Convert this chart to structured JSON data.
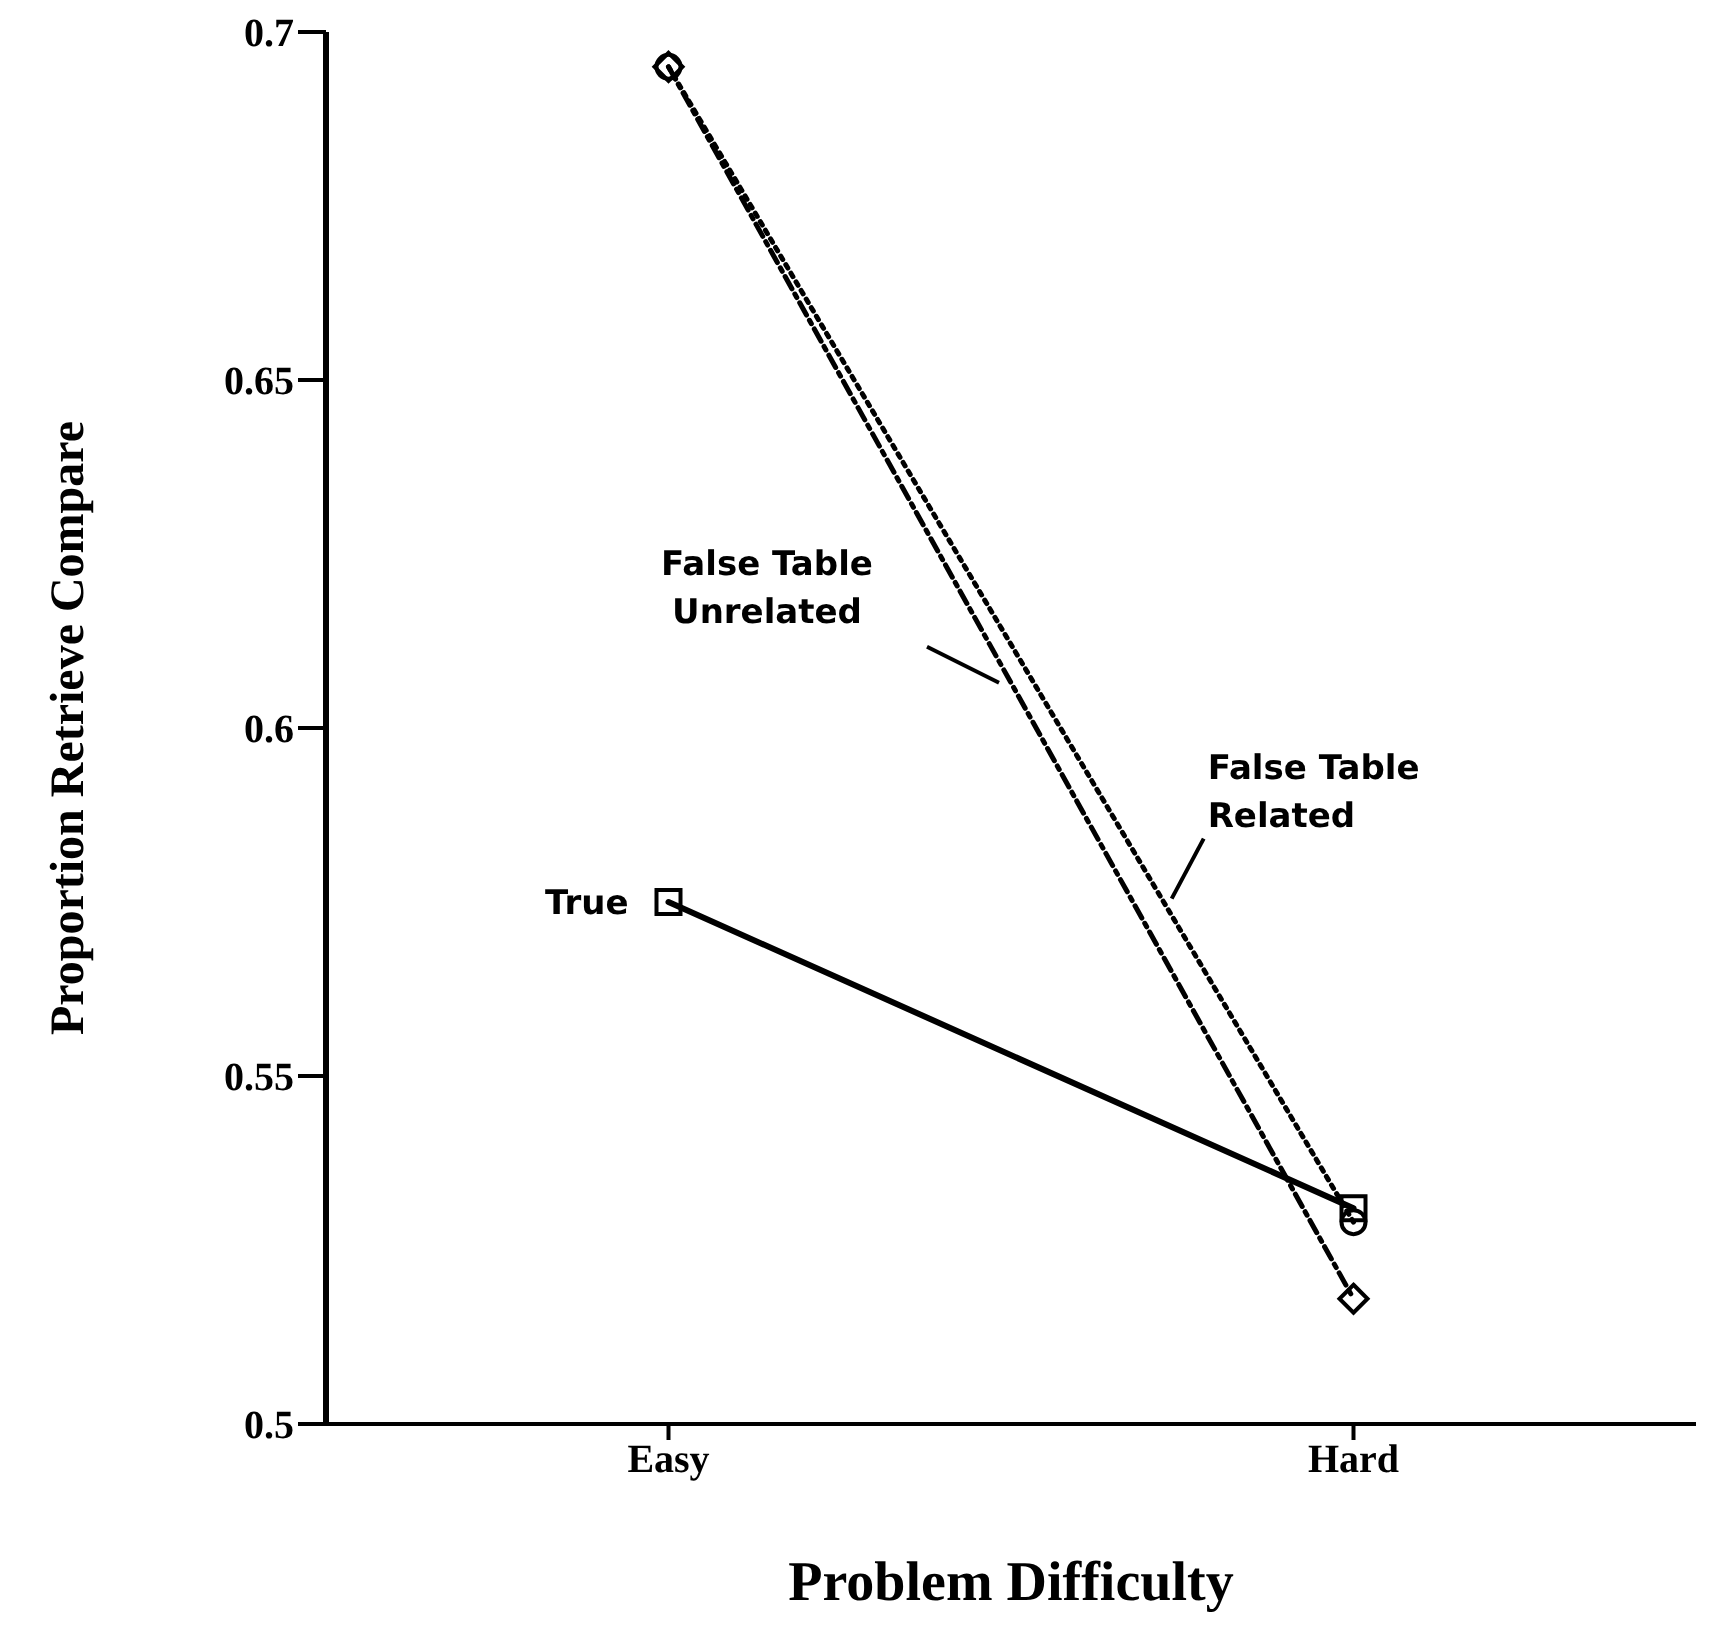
{
  "chart_data": {
    "type": "line",
    "xlabel": "Problem Difficulty",
    "ylabel": "Proportion Retrieve Compare",
    "categories": [
      "Easy",
      "Hard"
    ],
    "ylim": [
      0.5,
      0.7
    ],
    "yticks": [
      0.5,
      0.55,
      0.6,
      0.65,
      0.7
    ],
    "legend": false,
    "series": [
      {
        "name": "True",
        "color": "#000000",
        "values": [
          0.575,
          0.531
        ],
        "marker": "square",
        "line_style": "solid"
      },
      {
        "name": "False Table Unrelated",
        "color": "#000000",
        "values": [
          0.695,
          0.518
        ],
        "marker": "diamond",
        "line_style": "dashed"
      },
      {
        "name": "False Table Related",
        "color": "#000000",
        "values": [
          0.695,
          0.529
        ],
        "marker": "circle",
        "line_style": "dotted"
      }
    ]
  }
}
